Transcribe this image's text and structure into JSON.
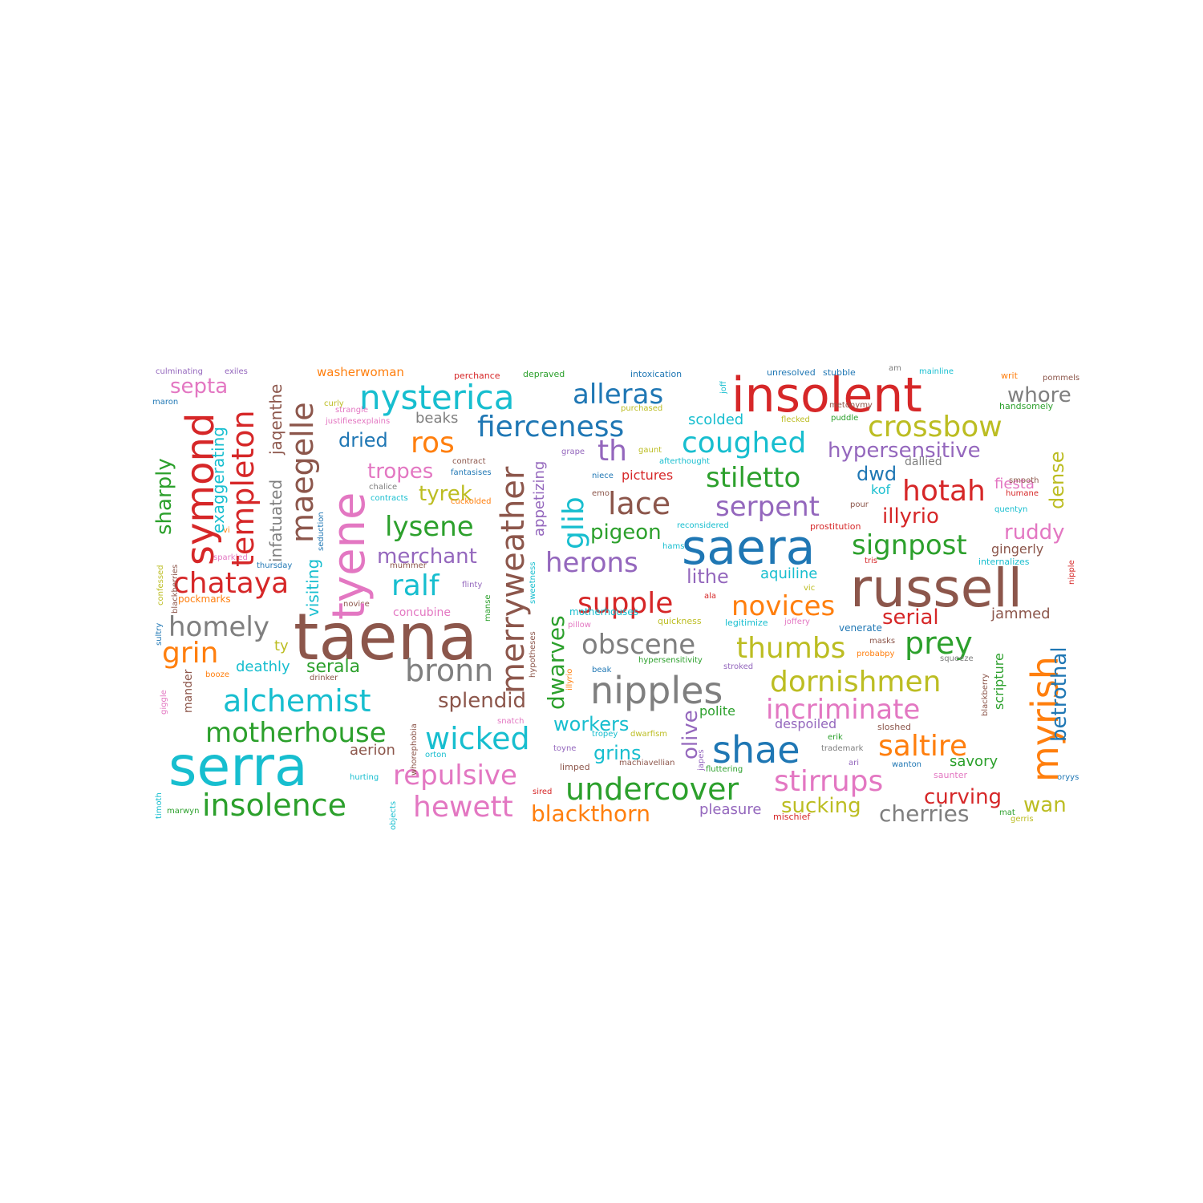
{
  "palette": {
    "red": "#d62728",
    "brown": "#8c564b",
    "cyan": "#17becf",
    "blue": "#1f77b4",
    "green": "#2ca02c",
    "orange": "#ff7f0e",
    "pink": "#e377c2",
    "purple": "#9467bd",
    "gray": "#7f7f7f",
    "olive": "#bcbd22"
  },
  "words": [
    {
      "text": "taena",
      "color": "brown"
    },
    {
      "text": "serra",
      "color": "cyan"
    },
    {
      "text": "russell",
      "color": "brown"
    },
    {
      "text": "saera",
      "color": "blue"
    },
    {
      "text": "insolent",
      "color": "red"
    },
    {
      "text": "nipples",
      "color": "gray"
    },
    {
      "text": "tyene",
      "color": "pink"
    },
    {
      "text": "nysterica",
      "color": "cyan"
    },
    {
      "text": "shae",
      "color": "blue"
    },
    {
      "text": "symond",
      "color": "red"
    },
    {
      "text": "myrish",
      "color": "orange"
    },
    {
      "text": "merryweather",
      "color": "brown"
    },
    {
      "text": "insolence",
      "color": "green"
    },
    {
      "text": "fierceness",
      "color": "blue"
    },
    {
      "text": "alchemist",
      "color": "cyan"
    },
    {
      "text": "dornishmen",
      "color": "olive"
    },
    {
      "text": "undercover",
      "color": "green"
    },
    {
      "text": "incriminate",
      "color": "pink"
    },
    {
      "text": "wicked",
      "color": "cyan"
    },
    {
      "text": "stirrups",
      "color": "pink"
    },
    {
      "text": "crossbow",
      "color": "olive"
    },
    {
      "text": "repulsive",
      "color": "pink"
    },
    {
      "text": "motherhouse",
      "color": "green"
    },
    {
      "text": "coughed",
      "color": "cyan"
    },
    {
      "text": "templeton",
      "color": "red"
    },
    {
      "text": "maegelle",
      "color": "brown"
    },
    {
      "text": "hewett",
      "color": "pink"
    },
    {
      "text": "chataya",
      "color": "red"
    },
    {
      "text": "saltire",
      "color": "orange"
    },
    {
      "text": "bronn",
      "color": "gray"
    },
    {
      "text": "obscene",
      "color": "gray"
    },
    {
      "text": "thumbs",
      "color": "olive"
    },
    {
      "text": "alleras",
      "color": "blue"
    },
    {
      "text": "signpost",
      "color": "green"
    },
    {
      "text": "homely",
      "color": "gray"
    },
    {
      "text": "hotah",
      "color": "red"
    },
    {
      "text": "serpent",
      "color": "purple"
    },
    {
      "text": "lace",
      "color": "brown"
    },
    {
      "text": "stiletto",
      "color": "green"
    },
    {
      "text": "supple",
      "color": "red"
    },
    {
      "text": "novices",
      "color": "orange"
    },
    {
      "text": "lysene",
      "color": "green"
    },
    {
      "text": "prey",
      "color": "green"
    },
    {
      "text": "glib",
      "color": "cyan"
    },
    {
      "text": "herons",
      "color": "purple"
    },
    {
      "text": "ralf",
      "color": "cyan"
    },
    {
      "text": "ros",
      "color": "orange"
    },
    {
      "text": "grin",
      "color": "orange"
    },
    {
      "text": "th",
      "color": "purple"
    },
    {
      "text": "whore",
      "color": "gray"
    },
    {
      "text": "hypersensitive",
      "color": "purple"
    },
    {
      "text": "blackthorn",
      "color": "orange"
    },
    {
      "text": "cherries",
      "color": "gray"
    },
    {
      "text": "curving",
      "color": "red"
    },
    {
      "text": "dwarves",
      "color": "green"
    },
    {
      "text": "betrothal",
      "color": "blue"
    },
    {
      "text": "splendid",
      "color": "brown"
    },
    {
      "text": "sucking",
      "color": "olive"
    },
    {
      "text": "olive",
      "color": "purple"
    },
    {
      "text": "septa",
      "color": "pink"
    },
    {
      "text": "dried",
      "color": "blue"
    },
    {
      "text": "tropes",
      "color": "pink"
    },
    {
      "text": "tyrek",
      "color": "olive"
    },
    {
      "text": "merchant",
      "color": "purple"
    },
    {
      "text": "pigeon",
      "color": "green"
    },
    {
      "text": "illyrio",
      "color": "red"
    },
    {
      "text": "serial",
      "color": "red"
    },
    {
      "text": "ruddy",
      "color": "pink"
    },
    {
      "text": "workers",
      "color": "cyan"
    },
    {
      "text": "grins",
      "color": "cyan"
    },
    {
      "text": "wan",
      "color": "olive"
    },
    {
      "text": "sharply",
      "color": "green"
    },
    {
      "text": "dense",
      "color": "olive"
    },
    {
      "text": "serala",
      "color": "green"
    },
    {
      "text": "dwd",
      "color": "blue"
    },
    {
      "text": "lithe",
      "color": "purple"
    },
    {
      "text": "visiting",
      "color": "cyan"
    },
    {
      "text": "exaggerating",
      "color": "cyan"
    },
    {
      "text": "deathly",
      "color": "cyan"
    },
    {
      "text": "scolded",
      "color": "cyan"
    },
    {
      "text": "savory",
      "color": "green"
    },
    {
      "text": "infatuated",
      "color": "gray"
    },
    {
      "text": "jaqenthe",
      "color": "brown"
    },
    {
      "text": "appetizing",
      "color": "purple"
    },
    {
      "text": "pleasure",
      "color": "purple"
    },
    {
      "text": "aquiline",
      "color": "cyan"
    },
    {
      "text": "fiesta",
      "color": "pink"
    },
    {
      "text": "aerion",
      "color": "brown"
    },
    {
      "text": "beaks",
      "color": "gray"
    },
    {
      "text": "despoiled",
      "color": "purple"
    },
    {
      "text": "gingerly",
      "color": "brown"
    },
    {
      "text": "jammed",
      "color": "brown"
    },
    {
      "text": "scripture",
      "color": "green"
    },
    {
      "text": "polite",
      "color": "green"
    },
    {
      "text": "kof",
      "color": "cyan"
    },
    {
      "text": "concubine",
      "color": "pink"
    },
    {
      "text": "mander",
      "color": "brown"
    },
    {
      "text": "pictures",
      "color": "red"
    },
    {
      "text": "ty",
      "color": "olive"
    },
    {
      "text": "dallied",
      "color": "gray"
    },
    {
      "text": "washerwoman",
      "color": "orange"
    },
    {
      "text": "legitimize",
      "color": "cyan"
    },
    {
      "text": "reconsidered",
      "color": "cyan"
    },
    {
      "text": "motherhouses",
      "color": "cyan"
    },
    {
      "text": "mischief",
      "color": "red"
    },
    {
      "text": "pockmarks",
      "color": "orange"
    },
    {
      "text": "quickness",
      "color": "olive"
    },
    {
      "text": "internalizes",
      "color": "cyan"
    },
    {
      "text": "venerate",
      "color": "blue"
    },
    {
      "text": "prostitution",
      "color": "red"
    },
    {
      "text": "sloshed",
      "color": "brown"
    },
    {
      "text": "saunter",
      "color": "pink"
    },
    {
      "text": "trademark",
      "color": "gray"
    },
    {
      "text": "machiavellian",
      "color": "brown"
    },
    {
      "text": "fluttering",
      "color": "green"
    },
    {
      "text": "hypersensitivity",
      "color": "green"
    },
    {
      "text": "squeeze",
      "color": "gray"
    },
    {
      "text": "contracts",
      "color": "cyan"
    },
    {
      "text": "fantasises",
      "color": "blue"
    },
    {
      "text": "cuckolded",
      "color": "orange"
    },
    {
      "text": "contract",
      "color": "brown"
    },
    {
      "text": "chalice",
      "color": "gray"
    },
    {
      "text": "intoxication",
      "color": "blue"
    },
    {
      "text": "afterthought",
      "color": "cyan"
    },
    {
      "text": "unresolved",
      "color": "blue"
    },
    {
      "text": "stubble",
      "color": "blue"
    },
    {
      "text": "mainline",
      "color": "cyan"
    },
    {
      "text": "depraved",
      "color": "green"
    },
    {
      "text": "perchance",
      "color": "red"
    },
    {
      "text": "culminating",
      "color": "purple"
    },
    {
      "text": "exiles",
      "color": "purple"
    },
    {
      "text": "pommels",
      "color": "brown"
    },
    {
      "text": "handsomely",
      "color": "green"
    },
    {
      "text": "writ",
      "color": "orange"
    },
    {
      "text": "am",
      "color": "gray"
    },
    {
      "text": "justifiesexplains",
      "color": "pink"
    },
    {
      "text": "strangle",
      "color": "pink"
    },
    {
      "text": "curly",
      "color": "olive"
    },
    {
      "text": "purchased",
      "color": "olive"
    },
    {
      "text": "flecked",
      "color": "olive"
    },
    {
      "text": "puddle",
      "color": "green"
    },
    {
      "text": "metonymy",
      "color": "brown"
    },
    {
      "text": "gaunt",
      "color": "olive"
    },
    {
      "text": "grape",
      "color": "purple"
    },
    {
      "text": "niece",
      "color": "blue"
    },
    {
      "text": "emo",
      "color": "brown"
    },
    {
      "text": "pour",
      "color": "brown"
    },
    {
      "text": "smooth",
      "color": "brown"
    },
    {
      "text": "humane",
      "color": "red"
    },
    {
      "text": "quentyn",
      "color": "cyan"
    },
    {
      "text": "hams",
      "color": "cyan"
    },
    {
      "text": "tris",
      "color": "red"
    },
    {
      "text": "flinty",
      "color": "purple"
    },
    {
      "text": "mummer",
      "color": "brown"
    },
    {
      "text": "novice",
      "color": "brown"
    },
    {
      "text": "ala",
      "color": "red"
    },
    {
      "text": "vic",
      "color": "olive"
    },
    {
      "text": "joffery",
      "color": "pink"
    },
    {
      "text": "pillow",
      "color": "pink"
    },
    {
      "text": "masks",
      "color": "brown"
    },
    {
      "text": "probabpy",
      "color": "orange"
    },
    {
      "text": "stroked",
      "color": "purple"
    },
    {
      "text": "beak",
      "color": "blue"
    },
    {
      "text": "booze",
      "color": "orange"
    },
    {
      "text": "drinker",
      "color": "brown"
    },
    {
      "text": "thursday",
      "color": "blue"
    },
    {
      "text": "sparkled",
      "color": "pink"
    },
    {
      "text": "vi",
      "color": "orange"
    },
    {
      "text": "maron",
      "color": "blue"
    },
    {
      "text": "tropey",
      "color": "cyan"
    },
    {
      "text": "dwarfism",
      "color": "olive"
    },
    {
      "text": "erik",
      "color": "green"
    },
    {
      "text": "toyne",
      "color": "purple"
    },
    {
      "text": "limped",
      "color": "brown"
    },
    {
      "text": "orton",
      "color": "cyan"
    },
    {
      "text": "hurting",
      "color": "cyan"
    },
    {
      "text": "snatch",
      "color": "pink"
    },
    {
      "text": "ari",
      "color": "purple"
    },
    {
      "text": "wanton",
      "color": "blue"
    },
    {
      "text": "oryys",
      "color": "blue"
    },
    {
      "text": "sired",
      "color": "red"
    },
    {
      "text": "marwyn",
      "color": "green"
    },
    {
      "text": "mat",
      "color": "green"
    },
    {
      "text": "gerris",
      "color": "olive"
    },
    {
      "text": "timoth",
      "color": "cyan"
    },
    {
      "text": "giggle",
      "color": "pink"
    },
    {
      "text": "sultry",
      "color": "blue"
    },
    {
      "text": "confessed",
      "color": "olive"
    },
    {
      "text": "blackberries",
      "color": "brown"
    },
    {
      "text": "seduction",
      "color": "blue"
    },
    {
      "text": "objects",
      "color": "cyan"
    },
    {
      "text": "whorephobia",
      "color": "brown"
    },
    {
      "text": "manse",
      "color": "green"
    },
    {
      "text": "hypotheses",
      "color": "brown"
    },
    {
      "text": "sweetness",
      "color": "cyan"
    },
    {
      "text": "illyrio",
      "color": "orange"
    },
    {
      "text": "japes",
      "color": "purple"
    },
    {
      "text": "blackberry",
      "color": "brown"
    },
    {
      "text": "nipple",
      "color": "red"
    },
    {
      "text": "joff",
      "color": "cyan"
    }
  ]
}
